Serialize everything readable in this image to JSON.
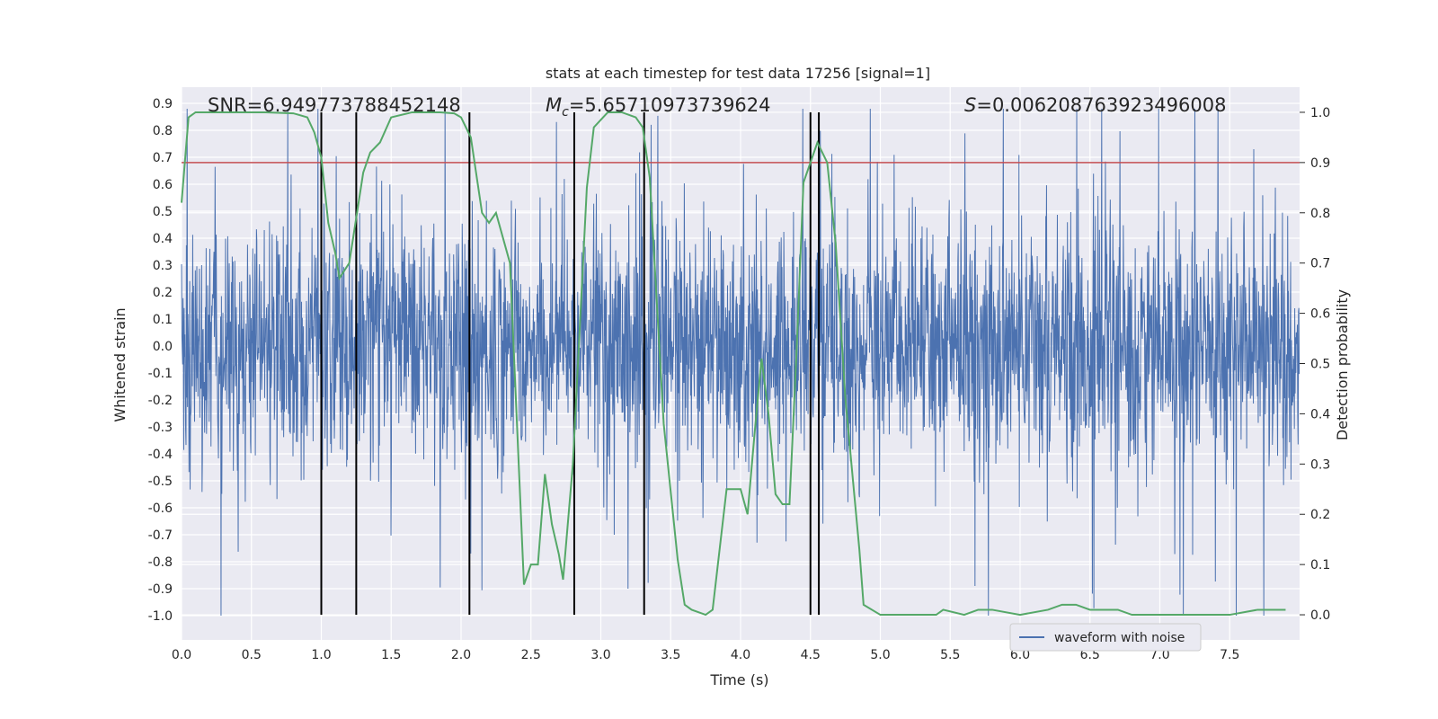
{
  "chart_data": {
    "type": "line",
    "title": "stats at each timestep for test data 17256 [signal=1]",
    "xlabel": "Time (s)",
    "ylabel": "Whitened strain",
    "y2label": "Detection probability",
    "xlim": [
      0.0,
      8.0
    ],
    "ylim": [
      -1.09,
      0.96
    ],
    "y2lim": [
      -0.05,
      1.05
    ],
    "x_ticks": [
      "0.0",
      "0.5",
      "1.0",
      "1.5",
      "2.0",
      "2.5",
      "3.0",
      "3.5",
      "4.0",
      "4.5",
      "5.0",
      "5.5",
      "6.0",
      "6.5",
      "7.0",
      "7.5"
    ],
    "y_ticks": [
      "0.9",
      "0.8",
      "0.7",
      "0.6",
      "0.5",
      "0.4",
      "0.3",
      "0.2",
      "0.1",
      "0.0",
      "-0.1",
      "-0.2",
      "-0.3",
      "-0.4",
      "-0.5",
      "-0.6",
      "-0.7",
      "-0.8",
      "-0.9",
      "-1.0"
    ],
    "y2_ticks": [
      "1.0",
      "0.9",
      "0.8",
      "0.7",
      "0.6",
      "0.5",
      "0.4",
      "0.3",
      "0.2",
      "0.1",
      "0.0"
    ],
    "grid": true,
    "legend_position": "bottom-center",
    "annotations": {
      "snr": "SNR=6.949773788452148",
      "mc_symbol": "M",
      "mc_sub": "c",
      "mc_value": "=5.65710973739624",
      "s_symbol": "S",
      "s_value": "=0.006208763923496008"
    },
    "threshold": {
      "y2": 0.9,
      "color": "#c44e52"
    },
    "vertical_lines_x": [
      1.0,
      1.25,
      2.06,
      2.81,
      3.31,
      4.5,
      4.56
    ],
    "series": [
      {
        "name": "waveform with noise",
        "kind": "noisy-waveform",
        "color": "#4c72b0",
        "approx_core_amplitude": 0.33,
        "approx_peak_min": -1.0,
        "approx_peak_max": 0.88
      },
      {
        "kind": "detection-probability",
        "axis": "y2",
        "color": "#55a868",
        "x": [
          0.0,
          0.05,
          0.1,
          0.2,
          0.4,
          0.6,
          0.8,
          0.9,
          0.95,
          1.0,
          1.05,
          1.1,
          1.13,
          1.2,
          1.3,
          1.35,
          1.42,
          1.5,
          1.65,
          1.85,
          1.95,
          2.0,
          2.07,
          2.15,
          2.2,
          2.25,
          2.35,
          2.45,
          2.5,
          2.55,
          2.6,
          2.65,
          2.7,
          2.73,
          2.8,
          2.9,
          2.95,
          3.05,
          3.15,
          3.25,
          3.3,
          3.35,
          3.45,
          3.55,
          3.6,
          3.65,
          3.75,
          3.8,
          3.9,
          4.0,
          4.05,
          4.1,
          4.15,
          4.2,
          4.25,
          4.3,
          4.35,
          4.4,
          4.45,
          4.55,
          4.62,
          4.68,
          4.75,
          4.85,
          4.88,
          5.0,
          5.2,
          5.4,
          5.45,
          5.6,
          5.7,
          5.8,
          6.0,
          6.2,
          6.3,
          6.4,
          6.5,
          6.6,
          6.7,
          6.8,
          7.0,
          7.3,
          7.5,
          7.7,
          7.9
        ],
        "y": [
          0.82,
          0.99,
          1.0,
          1.0,
          1.0,
          1.0,
          0.998,
          0.99,
          0.96,
          0.91,
          0.78,
          0.72,
          0.67,
          0.7,
          0.88,
          0.92,
          0.94,
          0.99,
          1.0,
          1.0,
          0.998,
          0.99,
          0.95,
          0.8,
          0.78,
          0.8,
          0.7,
          0.06,
          0.1,
          0.1,
          0.28,
          0.18,
          0.12,
          0.07,
          0.3,
          0.85,
          0.97,
          1.0,
          1.0,
          0.99,
          0.97,
          0.87,
          0.38,
          0.11,
          0.02,
          0.01,
          0.0,
          0.01,
          0.25,
          0.25,
          0.2,
          0.36,
          0.51,
          0.4,
          0.24,
          0.22,
          0.22,
          0.52,
          0.86,
          0.94,
          0.9,
          0.74,
          0.43,
          0.13,
          0.02,
          0.0,
          0.0,
          0.0,
          0.01,
          0.0,
          0.01,
          0.01,
          0.0,
          0.01,
          0.02,
          0.02,
          0.01,
          0.01,
          0.01,
          0.0,
          0.0,
          0.0,
          0.0,
          0.01,
          0.01
        ]
      }
    ]
  }
}
